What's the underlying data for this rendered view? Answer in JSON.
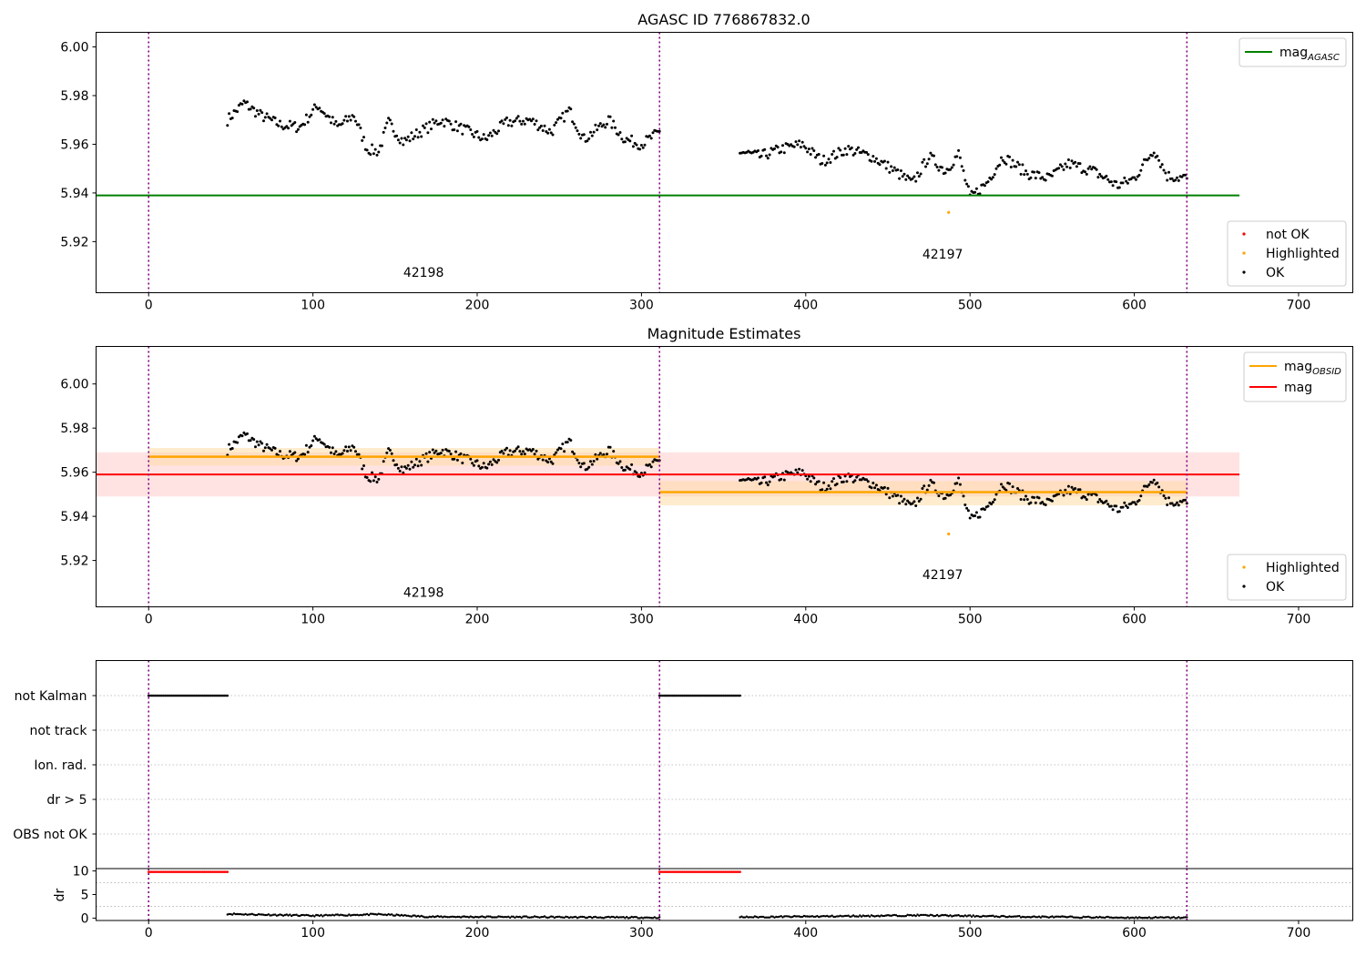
{
  "colors": {
    "ok": "#000000",
    "not_ok": "#ff0000",
    "highlighted": "#ffa500",
    "agasc_line": "#008000",
    "mag_line": "#ff0000",
    "mag_band": "#ffc0c0",
    "obsid_line": "#ffa500",
    "obsid_band": "#ffd9a0",
    "obs_divider": "#800080"
  },
  "chart_data": [
    {
      "type": "scatter",
      "panel": "top",
      "title": "AGASC ID 776867832.0",
      "xlim": [
        -32,
        733
      ],
      "ylim": [
        5.899,
        6.006
      ],
      "xticks": [
        0,
        100,
        200,
        300,
        400,
        500,
        600,
        700
      ],
      "yticks": [
        5.92,
        5.94,
        5.96,
        5.98,
        6.0
      ],
      "ytick_labels": [
        "5.92",
        "5.94",
        "5.96",
        "5.98",
        "6.00"
      ],
      "obs_boundaries": [
        0,
        311,
        632
      ],
      "obsid_labels": [
        {
          "text": "42198",
          "x": 155,
          "y": 5.9055
        },
        {
          "text": "42197",
          "x": 471,
          "y": 5.913
        }
      ],
      "agasc_mag": {
        "value": 5.939,
        "x_range": [
          -32,
          664
        ]
      },
      "highlighted_points": [
        {
          "x": 487,
          "y": 5.932
        }
      ],
      "legend_lines": [
        {
          "label": "mag",
          "sub": "AGASC",
          "color_key": "agasc_line"
        }
      ],
      "legend_points": [
        {
          "label": "not OK",
          "color_key": "not_ok"
        },
        {
          "label": "Highlighted",
          "color_key": "highlighted"
        },
        {
          "label": "OK",
          "color_key": "ok"
        }
      ],
      "series_ok": [
        {
          "obsid": "42198",
          "x_range": [
            48,
            311
          ],
          "anchors": [
            [
              48,
              5.97
            ],
            [
              58,
              5.977
            ],
            [
              68,
              5.972
            ],
            [
              80,
              5.968
            ],
            [
              92,
              5.967
            ],
            [
              103,
              5.976
            ],
            [
              115,
              5.967
            ],
            [
              125,
              5.972
            ],
            [
              133,
              5.958
            ],
            [
              140,
              5.957
            ],
            [
              146,
              5.969
            ],
            [
              155,
              5.961
            ],
            [
              165,
              5.965
            ],
            [
              178,
              5.97
            ],
            [
              192,
              5.966
            ],
            [
              205,
              5.962
            ],
            [
              218,
              5.969
            ],
            [
              232,
              5.97
            ],
            [
              245,
              5.965
            ],
            [
              256,
              5.974
            ],
            [
              265,
              5.962
            ],
            [
              280,
              5.97
            ],
            [
              290,
              5.962
            ],
            [
              300,
              5.96
            ],
            [
              311,
              5.965
            ]
          ]
        },
        {
          "obsid": "42197",
          "x_range": [
            360,
            632
          ],
          "anchors": [
            [
              360,
              5.957
            ],
            [
              372,
              5.955
            ],
            [
              385,
              5.958
            ],
            [
              398,
              5.96
            ],
            [
              410,
              5.953
            ],
            [
              425,
              5.958
            ],
            [
              440,
              5.955
            ],
            [
              452,
              5.95
            ],
            [
              465,
              5.944
            ],
            [
              475,
              5.955
            ],
            [
              485,
              5.949
            ],
            [
              493,
              5.956
            ],
            [
              500,
              5.938
            ],
            [
              510,
              5.944
            ],
            [
              520,
              5.955
            ],
            [
              535,
              5.948
            ],
            [
              548,
              5.946
            ],
            [
              560,
              5.952
            ],
            [
              575,
              5.949
            ],
            [
              590,
              5.943
            ],
            [
              600,
              5.946
            ],
            [
              612,
              5.958
            ],
            [
              620,
              5.947
            ],
            [
              632,
              5.946
            ]
          ]
        }
      ]
    },
    {
      "type": "scatter",
      "panel": "middle",
      "title": "Magnitude Estimates",
      "xlim": [
        -32,
        733
      ],
      "ylim": [
        5.899,
        6.017
      ],
      "xticks": [
        0,
        100,
        200,
        300,
        400,
        500,
        600,
        700
      ],
      "yticks": [
        5.92,
        5.94,
        5.96,
        5.98,
        6.0
      ],
      "ytick_labels": [
        "5.92",
        "5.94",
        "5.96",
        "5.98",
        "6.00"
      ],
      "obs_boundaries": [
        0,
        311,
        632
      ],
      "obsid_labels": [
        {
          "text": "42198",
          "x": 155,
          "y": 5.9035
        },
        {
          "text": "42197",
          "x": 471,
          "y": 5.9115
        }
      ],
      "mag": {
        "value": 5.959,
        "band": [
          5.949,
          5.969
        ],
        "x_range": [
          -32,
          664
        ]
      },
      "obsid_mags": [
        {
          "obsid": "42198",
          "x_range": [
            0,
            311
          ],
          "value": 5.967,
          "band": [
            5.963,
            5.971
          ]
        },
        {
          "obsid": "42197",
          "x_range": [
            311,
            632
          ],
          "value": 5.951,
          "band": [
            5.945,
            5.956
          ]
        }
      ],
      "highlighted_points": [
        {
          "x": 487,
          "y": 5.932
        }
      ],
      "legend_lines": [
        {
          "label": "mag",
          "sub": "OBSID",
          "color_key": "obsid_line"
        },
        {
          "label": "mag",
          "sub": "",
          "color_key": "mag_line"
        }
      ],
      "legend_points": [
        {
          "label": "Highlighted",
          "color_key": "highlighted"
        },
        {
          "label": "OK",
          "color_key": "ok"
        }
      ]
    },
    {
      "type": "scatter",
      "panel": "flags",
      "xlim": [
        -32,
        733
      ],
      "categories": [
        "not Kalman",
        "not track",
        "Ion. rad.",
        "dr > 5",
        "OBS not OK"
      ],
      "flag_ranges": [
        {
          "category": "not Kalman",
          "ranges": [
            [
              0,
              48
            ],
            [
              311,
              360
            ]
          ]
        }
      ],
      "obs_boundaries": [
        0,
        311,
        632
      ]
    },
    {
      "type": "scatter",
      "panel": "dr",
      "ylabel": "dr",
      "xlim": [
        -32,
        733
      ],
      "ylim": [
        -0.5,
        10.5
      ],
      "xticks": [
        0,
        100,
        200,
        300,
        400,
        500,
        600,
        700
      ],
      "yticks": [
        0,
        5,
        10
      ],
      "ytick_labels": [
        "0",
        "5",
        "10"
      ],
      "obs_boundaries": [
        0,
        311,
        632
      ],
      "not_kalman_dr": {
        "value": 9.8,
        "ranges": [
          [
            0,
            48
          ],
          [
            311,
            360
          ]
        ]
      },
      "dr_series": [
        {
          "x_range": [
            48,
            311
          ],
          "anchors": [
            [
              48,
              0.9
            ],
            [
              100,
              0.5
            ],
            [
              140,
              0.8
            ],
            [
              170,
              0.3
            ],
            [
              250,
              0.2
            ],
            [
              311,
              0.1
            ]
          ]
        },
        {
          "x_range": [
            360,
            632
          ],
          "anchors": [
            [
              360,
              0.2
            ],
            [
              420,
              0.4
            ],
            [
              470,
              0.6
            ],
            [
              530,
              0.3
            ],
            [
              600,
              0.1
            ],
            [
              632,
              0.1
            ]
          ]
        }
      ]
    }
  ]
}
